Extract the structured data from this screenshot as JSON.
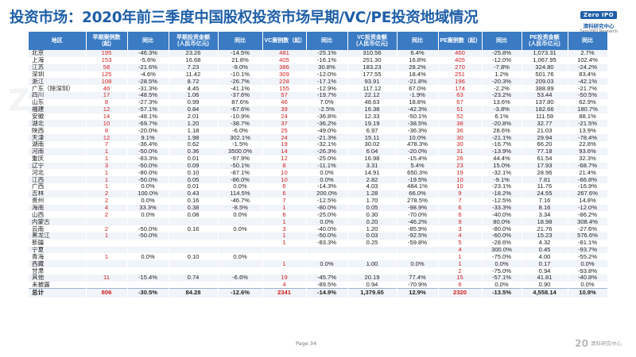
{
  "title": "投资市场：2020年前三季度中国股权投资市场早期/VC/PE投资地域情况",
  "logo": {
    "badge": "Zero IPO",
    "name_cn": "清科研究中心",
    "name_en": "Zero2IPO Research"
  },
  "watermark": "ZERO2IPO RESEARCH",
  "table": {
    "headers": [
      "地区",
      "早期案例数\n(起)",
      "同比",
      "早期投资金额\n(人民币亿元)",
      "同比",
      "VC案例数（起）",
      "同比",
      "VC投资金额\n(人民币亿元)",
      "同比",
      "PE案例数（起）",
      "同比",
      "PE投资金额\n(人民币亿元)",
      "同比"
    ],
    "rows": [
      [
        "北京",
        "195",
        "-46.3%",
        "23.26",
        "-14.5%",
        "481",
        "-25.1%",
        "310.56",
        "6.4%",
        "460",
        "-25.8%",
        "1,073.31",
        "2.7%"
      ],
      [
        "上海",
        "153",
        "-5.6%",
        "16.68",
        "21.8%",
        "405",
        "-16.1%",
        "251.30",
        "16.8%",
        "405",
        "-12.0%",
        "1,067.95",
        "102.4%"
      ],
      [
        "江苏",
        "58",
        "-21.6%",
        "7.23",
        "-9.0%",
        "386",
        "30.8%",
        "183.23",
        "28.2%",
        "270",
        "-7.8%",
        "324.80",
        "-24.2%"
      ],
      [
        "深圳",
        "125",
        "-4.6%",
        "11.42",
        "-10.1%",
        "309",
        "-12.0%",
        "177.55",
        "18.4%",
        "251",
        "1.2%",
        "501.76",
        "83.4%"
      ],
      [
        "浙江",
        "108",
        "-28.5%",
        "8.72",
        "-26.7%",
        "228",
        "-17.1%",
        "93.91",
        "-21.8%",
        "196",
        "-20.3%",
        "209.03",
        "-42.1%"
      ],
      [
        "广东（除深圳）",
        "46",
        "-31.3%",
        "4.45",
        "-41.1%",
        "155",
        "-12.9%",
        "117.12",
        "67.0%",
        "174",
        "-2.2%",
        "388.89",
        "-21.7%"
      ],
      [
        "四川",
        "17",
        "-48.5%",
        "1.06",
        "-37.6%",
        "57",
        "-19.7%",
        "22.12",
        "-1.9%",
        "63",
        "-23.2%",
        "53.44",
        "-50.5%"
      ],
      [
        "山东",
        "8",
        "-27.3%",
        "0.99",
        "87.6%",
        "46",
        "7.0%",
        "48.63",
        "18.8%",
        "67",
        "13.6%",
        "137.80",
        "62.9%"
      ],
      [
        "福建",
        "12",
        "-57.1%",
        "0.84",
        "-67.6%",
        "39",
        "-2.5%",
        "16.38",
        "-42.3%",
        "51",
        "-3.8%",
        "182.66",
        "180.7%"
      ],
      [
        "安徽",
        "14",
        "-48.1%",
        "2.01",
        "-10.9%",
        "24",
        "-36.8%",
        "12.33",
        "-50.1%",
        "52",
        "6.1%",
        "111.59",
        "88.1%"
      ],
      [
        "湖北",
        "10",
        "-69.7%",
        "1.20",
        "-38.7%",
        "37",
        "-36.2%",
        "19.19",
        "-38.5%",
        "38",
        "-20.8%",
        "32.77",
        "-21.5%"
      ],
      [
        "陕西",
        "8",
        "-20.0%",
        "1.18",
        "-6.0%",
        "25",
        "-49.0%",
        "6.97",
        "-36.3%",
        "36",
        "28.6%",
        "21.03",
        "13.9%"
      ],
      [
        "天津",
        "12",
        "9.1%",
        "1.98",
        "302.1%",
        "24",
        "-21.3%",
        "15.11",
        "10.0%",
        "30",
        "-21.1%",
        "29.94",
        "-78.4%"
      ],
      [
        "湖南",
        "7",
        "-36.4%",
        "0.62",
        "-1.5%",
        "19",
        "-32.1%",
        "30.02",
        "478.3%",
        "30",
        "-16.7%",
        "66.20",
        "22.8%"
      ],
      [
        "河南",
        "1",
        "-50.0%",
        "0.36",
        "3500.0%",
        "14",
        "-26.3%",
        "6.04",
        "-20.0%",
        "31",
        "-13.9%",
        "77.18",
        "93.6%"
      ],
      [
        "重庆",
        "1",
        "-83.3%",
        "0.01",
        "-97.9%",
        "12",
        "-25.0%",
        "16.98",
        "-15.4%",
        "26",
        "44.4%",
        "61.54",
        "32.3%"
      ],
      [
        "辽宁",
        "3",
        "-50.0%",
        "0.09",
        "-50.1%",
        "8",
        "-11.1%",
        "3.31",
        "5.4%",
        "23",
        "15.0%",
        "17.93",
        "-68.7%"
      ],
      [
        "河北",
        "1",
        "-80.0%",
        "0.10",
        "-87.1%",
        "10",
        "0.0%",
        "14.91",
        "650.3%",
        "19",
        "-32.1%",
        "28.96",
        "21.4%"
      ],
      [
        "江西",
        "1",
        "-50.0%",
        "0.05",
        "-86.0%",
        "10",
        "0.0%",
        "2.82",
        "-19.5%",
        "10",
        "-9.1%",
        "7.81",
        "-66.8%"
      ],
      [
        "广西",
        "1",
        "0.0%",
        "0.01",
        "0.0%",
        "6",
        "-14.3%",
        "4.03",
        "484.1%",
        "10",
        "-23.1%",
        "11.76",
        "-16.9%"
      ],
      [
        "吉林",
        "2",
        "100.0%",
        "0.43",
        "114.5%",
        "6",
        "200.0%",
        "1.28",
        "66.0%",
        "9",
        "-18.2%",
        "24.55",
        "267.6%"
      ],
      [
        "贵州",
        "2",
        "0.0%",
        "0.16",
        "-46.7%",
        "7",
        "-12.5%",
        "1.70",
        "278.5%",
        "7",
        "-12.5%",
        "7.16",
        "14.8%"
      ],
      [
        "海南",
        "4",
        "33.3%",
        "0.38",
        "-8.5%",
        "1",
        "-80.0%",
        "0.05",
        "-98.9%",
        "6",
        "-33.3%",
        "8.16",
        "-12.0%"
      ],
      [
        "山西",
        "2",
        "0.0%",
        "0.08",
        "0.0%",
        "6",
        "-25.0%",
        "0.30",
        "-70.0%",
        "6",
        "-40.0%",
        "3.34",
        "-86.2%"
      ],
      [
        "内蒙古",
        "",
        "",
        "",
        "",
        "1",
        "0.0%",
        "0.20",
        "-46.2%",
        "9",
        "80.0%",
        "18.98",
        "308.4%"
      ],
      [
        "云南",
        "2",
        "-50.0%",
        "0.16",
        "0.0%",
        "3",
        "-40.0%",
        "1.20",
        "-85.9%",
        "3",
        "-80.0%",
        "21.76",
        "-27.6%"
      ],
      [
        "黑龙江",
        "1",
        "-50.0%",
        "",
        "",
        "1",
        "-50.0%",
        "0.03",
        "-92.5%",
        "4",
        "-60.0%",
        "15.23",
        "576.6%"
      ],
      [
        "新疆",
        "",
        "",
        "",
        "",
        "1",
        "-83.3%",
        "0.25",
        "-59.8%",
        "5",
        "-28.6%",
        "4.32",
        "-81.1%"
      ],
      [
        "宁夏",
        "",
        "",
        "",
        "",
        "",
        "",
        "",
        "",
        "4",
        "300.0%",
        "0.45",
        "-93.7%"
      ],
      [
        "青海",
        "1",
        "0.0%",
        "0.10",
        "0.0%",
        "",
        "",
        "",
        "",
        "1",
        "-75.0%",
        "4.00",
        "-55.2%"
      ],
      [
        "西藏",
        "",
        "",
        "",
        "",
        "1",
        "0.0%",
        "1.00",
        "0.0%",
        "1",
        "0.0%",
        "0.17",
        "0.0%"
      ],
      [
        "甘肃",
        "",
        "",
        "",
        "",
        "",
        "",
        "",
        "",
        "2",
        "-75.0%",
        "0.94",
        "-93.8%"
      ],
      [
        "其他",
        "11",
        "-15.4%",
        "0.74",
        "-6.6%",
        "19",
        "-45.7%",
        "20.19",
        "77.4%",
        "15",
        "-57.1%",
        "41.81",
        "-40.8%"
      ],
      [
        "未披露",
        "",
        "",
        "",
        "",
        "4",
        "-89.5%",
        "0.94",
        "-70.9%",
        "6",
        "0.0%",
        "0.90",
        "0.0%"
      ]
    ],
    "total": [
      "总计",
      "806",
      "-30.5%",
      "84.28",
      "-12.6%",
      "2341",
      "-14.9%",
      "1,379.65",
      "12.9%",
      "2320",
      "-13.5%",
      "4,558.14",
      "10.8%"
    ]
  },
  "colors": {
    "title": "#1f5fa8",
    "header_bg": "#3a7bc4",
    "value_red": "#d02020",
    "band": "#f1f4f9"
  },
  "footer": {
    "page_label": "Page  34",
    "logo_text": "清科研究中心"
  }
}
